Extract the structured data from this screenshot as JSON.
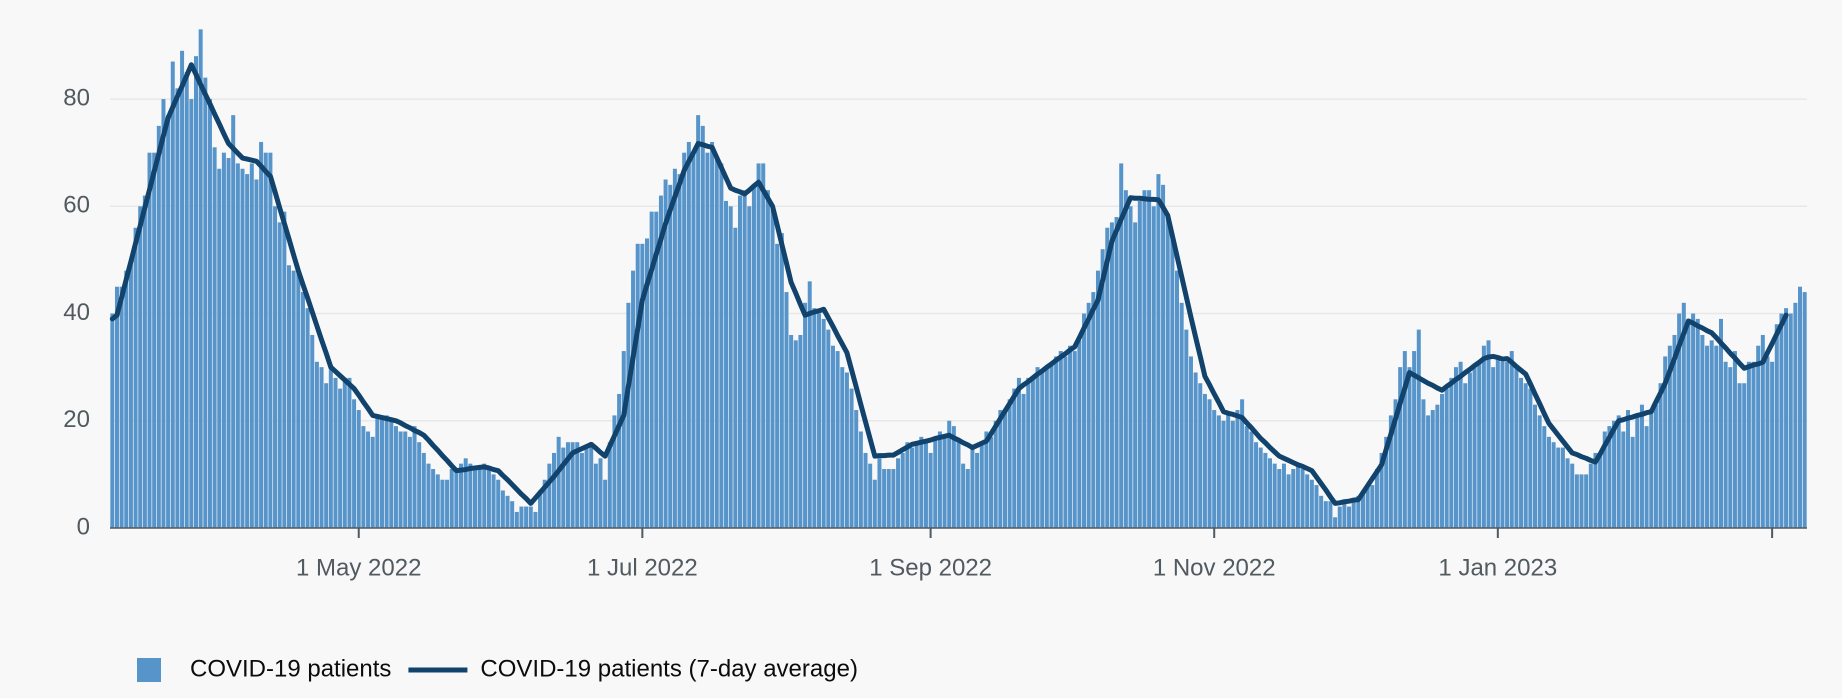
{
  "chart_data": {
    "type": "bar",
    "x": [
      "2022-03-09",
      "2022-03-10",
      "2022-03-11",
      "2022-03-12",
      "2022-03-13",
      "2022-03-14",
      "2022-03-15",
      "2022-03-16",
      "2022-03-17",
      "2022-03-18",
      "2022-03-19",
      "2022-03-20",
      "2022-03-21",
      "2022-03-22",
      "2022-03-23",
      "2022-03-24",
      "2022-03-25",
      "2022-03-26",
      "2022-03-27",
      "2022-03-28",
      "2022-03-29",
      "2022-03-30",
      "2022-03-31",
      "2022-04-01",
      "2022-04-02",
      "2022-04-03",
      "2022-04-04",
      "2022-04-05",
      "2022-04-06",
      "2022-04-07",
      "2022-04-08",
      "2022-04-09",
      "2022-04-10",
      "2022-04-11",
      "2022-04-12",
      "2022-04-13",
      "2022-04-14",
      "2022-04-15",
      "2022-04-16",
      "2022-04-17",
      "2022-04-18",
      "2022-04-19",
      "2022-04-20",
      "2022-04-21",
      "2022-04-22",
      "2022-04-23",
      "2022-04-24",
      "2022-04-25",
      "2022-04-26",
      "2022-04-27",
      "2022-04-28",
      "2022-04-29",
      "2022-04-30",
      "2022-05-01",
      "2022-05-02",
      "2022-05-03",
      "2022-05-04",
      "2022-05-05",
      "2022-05-06",
      "2022-05-07",
      "2022-05-08",
      "2022-05-09",
      "2022-05-10",
      "2022-05-11",
      "2022-05-12",
      "2022-05-13",
      "2022-05-14",
      "2022-05-15",
      "2022-05-16",
      "2022-05-17",
      "2022-05-18",
      "2022-05-19",
      "2022-05-20",
      "2022-05-21",
      "2022-05-22",
      "2022-05-23",
      "2022-05-24",
      "2022-05-25",
      "2022-05-26",
      "2022-05-27",
      "2022-05-28",
      "2022-05-29",
      "2022-05-30",
      "2022-05-31",
      "2022-06-01",
      "2022-06-02",
      "2022-06-03",
      "2022-06-04",
      "2022-06-05",
      "2022-06-06",
      "2022-06-07",
      "2022-06-08",
      "2022-06-09",
      "2022-06-10",
      "2022-06-11",
      "2022-06-12",
      "2022-06-13",
      "2022-06-14",
      "2022-06-15",
      "2022-06-16",
      "2022-06-17",
      "2022-06-18",
      "2022-06-19",
      "2022-06-20",
      "2022-06-21",
      "2022-06-22",
      "2022-06-23",
      "2022-06-24",
      "2022-06-25",
      "2022-06-26",
      "2022-06-27",
      "2022-06-28",
      "2022-06-29",
      "2022-06-30",
      "2022-07-01",
      "2022-07-02",
      "2022-07-03",
      "2022-07-04",
      "2022-07-05",
      "2022-07-06",
      "2022-07-07",
      "2022-07-08",
      "2022-07-09",
      "2022-07-10",
      "2022-07-11",
      "2022-07-12",
      "2022-07-13",
      "2022-07-14",
      "2022-07-15",
      "2022-07-16",
      "2022-07-17",
      "2022-07-18",
      "2022-07-19",
      "2022-07-20",
      "2022-07-21",
      "2022-07-22",
      "2022-07-23",
      "2022-07-24",
      "2022-07-25",
      "2022-07-26",
      "2022-07-27",
      "2022-07-28",
      "2022-07-29",
      "2022-07-30",
      "2022-07-31",
      "2022-08-01",
      "2022-08-02",
      "2022-08-03",
      "2022-08-04",
      "2022-08-05",
      "2022-08-06",
      "2022-08-07",
      "2022-08-08",
      "2022-08-09",
      "2022-08-10",
      "2022-08-11",
      "2022-08-12",
      "2022-08-13",
      "2022-08-14",
      "2022-08-15",
      "2022-08-16",
      "2022-08-17",
      "2022-08-18",
      "2022-08-19",
      "2022-08-20",
      "2022-08-21",
      "2022-08-22",
      "2022-08-23",
      "2022-08-24",
      "2022-08-25",
      "2022-08-26",
      "2022-08-27",
      "2022-08-28",
      "2022-08-29",
      "2022-08-30",
      "2022-08-31",
      "2022-09-01",
      "2022-09-02",
      "2022-09-03",
      "2022-09-04",
      "2022-09-05",
      "2022-09-06",
      "2022-09-07",
      "2022-09-08",
      "2022-09-09",
      "2022-09-10",
      "2022-09-11",
      "2022-09-12",
      "2022-09-13",
      "2022-09-14",
      "2022-09-15",
      "2022-09-16",
      "2022-09-17",
      "2022-09-18",
      "2022-09-19",
      "2022-09-20",
      "2022-09-21",
      "2022-09-22",
      "2022-09-23",
      "2022-09-24",
      "2022-09-25",
      "2022-09-26",
      "2022-09-27",
      "2022-09-28",
      "2022-09-29",
      "2022-09-30",
      "2022-10-01",
      "2022-10-02",
      "2022-10-03",
      "2022-10-04",
      "2022-10-05",
      "2022-10-06",
      "2022-10-07",
      "2022-10-08",
      "2022-10-09",
      "2022-10-10",
      "2022-10-11",
      "2022-10-12",
      "2022-10-13",
      "2022-10-14",
      "2022-10-15",
      "2022-10-16",
      "2022-10-17",
      "2022-10-18",
      "2022-10-19",
      "2022-10-20",
      "2022-10-21",
      "2022-10-22",
      "2022-10-23",
      "2022-10-24",
      "2022-10-25",
      "2022-10-26",
      "2022-10-27",
      "2022-10-28",
      "2022-10-29",
      "2022-10-30",
      "2022-10-31",
      "2022-11-01",
      "2022-11-02",
      "2022-11-03",
      "2022-11-04",
      "2022-11-05",
      "2022-11-06",
      "2022-11-07",
      "2022-11-08",
      "2022-11-09",
      "2022-11-10",
      "2022-11-11",
      "2022-11-12",
      "2022-11-13",
      "2022-11-14",
      "2022-11-15",
      "2022-11-16",
      "2022-11-17",
      "2022-11-18",
      "2022-11-19",
      "2022-11-20",
      "2022-11-21",
      "2022-11-22",
      "2022-11-23",
      "2022-11-24",
      "2022-11-25",
      "2022-11-26",
      "2022-11-27",
      "2022-11-28",
      "2022-11-29",
      "2022-11-30",
      "2022-12-01",
      "2022-12-02",
      "2022-12-03",
      "2022-12-04",
      "2022-12-05",
      "2022-12-06",
      "2022-12-07",
      "2022-12-08",
      "2022-12-09",
      "2022-12-10",
      "2022-12-11",
      "2022-12-12",
      "2022-12-13",
      "2022-12-14",
      "2022-12-15",
      "2022-12-16",
      "2022-12-17",
      "2022-12-18",
      "2022-12-19",
      "2022-12-20",
      "2022-12-21",
      "2022-12-22",
      "2022-12-23",
      "2022-12-24",
      "2022-12-25",
      "2022-12-26",
      "2022-12-27",
      "2022-12-28",
      "2022-12-29",
      "2022-12-30",
      "2022-12-31",
      "2023-01-01",
      "2023-01-02",
      "2023-01-03",
      "2023-01-04",
      "2023-01-05",
      "2023-01-06",
      "2023-01-07",
      "2023-01-08",
      "2023-01-09",
      "2023-01-10",
      "2023-01-11",
      "2023-01-12",
      "2023-01-13",
      "2023-01-14",
      "2023-01-15",
      "2023-01-16",
      "2023-01-17",
      "2023-01-18",
      "2023-01-19",
      "2023-01-20",
      "2023-01-21",
      "2023-01-22",
      "2023-01-23",
      "2023-01-24",
      "2023-01-25",
      "2023-01-26",
      "2023-01-27",
      "2023-01-28",
      "2023-01-29",
      "2023-01-30",
      "2023-01-31",
      "2023-02-01",
      "2023-02-02",
      "2023-02-03",
      "2023-02-04",
      "2023-02-05",
      "2023-02-06",
      "2023-02-07",
      "2023-02-08",
      "2023-02-09",
      "2023-02-10",
      "2023-02-11",
      "2023-02-12",
      "2023-02-13",
      "2023-02-14",
      "2023-02-15",
      "2023-02-16",
      "2023-02-17",
      "2023-02-18",
      "2023-02-19",
      "2023-02-20",
      "2023-02-21",
      "2023-02-22",
      "2023-02-23",
      "2023-02-24",
      "2023-02-25",
      "2023-02-26",
      "2023-02-27",
      "2023-02-28",
      "2023-03-01",
      "2023-03-02",
      "2023-03-03",
      "2023-03-04",
      "2023-03-05",
      "2023-03-06",
      "2023-03-07",
      "2023-03-08"
    ],
    "series": [
      {
        "name": "COVID-19 patients",
        "type": "bar",
        "color": "#5694ca",
        "values": [
          40,
          45,
          45,
          48,
          50,
          56,
          60,
          62,
          70,
          70,
          75,
          80,
          77,
          87,
          82,
          89,
          85,
          80,
          88,
          93,
          84,
          80,
          71,
          67,
          70,
          69,
          77,
          68,
          67,
          66,
          68,
          65,
          72,
          70,
          70,
          60,
          57,
          59,
          49,
          48,
          48,
          44,
          41,
          36,
          31,
          30,
          27,
          30,
          28,
          26,
          28,
          28,
          24,
          22,
          19,
          18,
          17,
          21,
          21,
          21,
          20,
          19,
          18,
          18,
          17,
          19,
          16,
          14,
          12,
          11,
          10,
          9,
          9,
          11,
          11,
          12,
          13,
          12,
          11,
          11,
          12,
          11,
          10,
          9,
          7,
          6,
          5,
          3,
          4,
          4,
          4,
          3,
          7,
          9,
          12,
          14,
          17,
          15,
          16,
          16,
          16,
          14,
          15,
          16,
          12,
          13,
          9,
          16,
          21,
          25,
          33,
          42,
          48,
          53,
          53,
          54,
          59,
          59,
          62,
          65,
          64,
          67,
          66,
          70,
          72,
          70,
          77,
          75,
          70,
          72,
          69,
          68,
          61,
          60,
          56,
          62,
          63,
          60,
          64,
          68,
          68,
          63,
          60,
          53,
          55,
          44,
          36,
          35,
          36,
          42,
          46,
          41,
          40,
          39,
          37,
          34,
          33,
          30,
          29,
          26,
          22,
          18,
          14,
          12,
          9,
          13,
          11,
          11,
          11,
          13,
          14,
          16,
          15,
          16,
          17,
          16,
          14,
          17,
          18,
          17,
          20,
          19,
          16,
          12,
          11,
          15,
          14,
          16,
          18,
          17,
          20,
          22,
          22,
          24,
          26,
          28,
          25,
          28,
          28,
          30,
          29,
          30,
          31,
          32,
          33,
          32,
          34,
          33,
          35,
          40,
          42,
          44,
          48,
          52,
          56,
          57,
          58,
          68,
          63,
          60,
          57,
          61,
          63,
          63,
          60,
          66,
          64,
          58,
          55,
          48,
          42,
          37,
          32,
          29,
          27,
          25,
          24,
          22,
          21,
          20,
          21,
          20,
          22,
          24,
          19,
          18,
          16,
          15,
          14,
          13,
          12,
          11,
          12,
          10,
          11,
          12,
          11,
          10,
          9,
          8,
          6,
          5,
          5,
          2,
          4,
          5,
          4,
          5,
          6,
          7,
          8,
          8,
          11,
          14,
          17,
          21,
          24,
          30,
          33,
          30,
          33,
          37,
          24,
          21,
          22,
          23,
          25,
          26,
          28,
          30,
          31,
          27,
          29,
          30,
          31,
          34,
          35,
          30,
          32,
          31,
          31,
          33,
          30,
          28,
          27,
          26,
          23,
          21,
          19,
          17,
          16,
          15,
          15,
          13,
          12,
          10,
          10,
          10,
          12,
          14,
          14,
          18,
          19,
          20,
          21,
          18,
          22,
          17,
          21,
          23,
          19,
          22,
          23,
          27,
          32,
          34,
          36,
          40,
          42,
          39,
          40,
          39,
          36,
          34,
          35,
          34,
          39,
          31,
          30,
          33,
          27,
          27,
          31,
          31,
          34,
          36,
          32,
          31,
          38,
          40,
          41,
          40,
          42,
          45,
          44
        ]
      },
      {
        "name": "COVID-19 patients (7-day average)",
        "type": "line",
        "color": "#12436d",
        "values": [
          39.0,
          39.7,
          43.0,
          46.4,
          49.7,
          53.1,
          56.4,
          59.8,
          63.1,
          66.5,
          69.8,
          73.2,
          76.5,
          78.5,
          80.5,
          82.4,
          84.4,
          86.4,
          84.6,
          82.7,
          80.9,
          79.1,
          77.2,
          75.4,
          73.5,
          71.7,
          70.8,
          69.9,
          69.0,
          68.8,
          68.6,
          68.4,
          67.5,
          66.5,
          65.6,
          62.7,
          59.7,
          56.8,
          53.9,
          50.9,
          48.0,
          45.4,
          42.9,
          40.3,
          37.7,
          35.1,
          32.6,
          30.0,
          29.2,
          28.4,
          27.6,
          26.8,
          26.0,
          24.8,
          23.5,
          22.3,
          21.0,
          20.8,
          20.6,
          20.4,
          20.2,
          20.0,
          19.6,
          19.1,
          18.7,
          18.2,
          17.8,
          17.3,
          16.4,
          15.4,
          14.5,
          13.5,
          12.6,
          11.6,
          10.7,
          10.8,
          10.9,
          11.1,
          11.2,
          11.3,
          11.4,
          11.2,
          10.9,
          10.7,
          9.8,
          9.0,
          8.1,
          7.2,
          6.3,
          5.5,
          4.6,
          5.6,
          6.6,
          7.6,
          8.6,
          9.6,
          10.7,
          11.8,
          12.9,
          14.0,
          14.4,
          14.8,
          15.2,
          15.6,
          14.9,
          14.1,
          13.4,
          15.3,
          17.2,
          19.1,
          21.0,
          26.4,
          31.8,
          37.1,
          42.5,
          45.4,
          48.2,
          51.1,
          53.9,
          56.8,
          59.3,
          61.8,
          64.2,
          66.7,
          68.4,
          70.0,
          71.7,
          71.5,
          71.2,
          71.0,
          69.1,
          67.2,
          65.3,
          63.4,
          63.0,
          62.7,
          62.3,
          63.0,
          63.8,
          64.5,
          63.0,
          61.5,
          60.0,
          56.5,
          52.9,
          49.4,
          45.8,
          43.8,
          41.7,
          39.7,
          40.0,
          40.3,
          40.5,
          40.8,
          39.2,
          37.6,
          35.9,
          34.3,
          32.7,
          29.5,
          26.3,
          23.0,
          19.8,
          16.6,
          13.4,
          13.5,
          13.5,
          13.6,
          13.6,
          14.1,
          14.6,
          15.1,
          15.6,
          15.8,
          16.0,
          16.2,
          16.4,
          16.7,
          16.9,
          17.1,
          17.3,
          16.8,
          16.4,
          15.9,
          15.5,
          15.0,
          15.4,
          15.8,
          16.2,
          17.6,
          19.0,
          20.4,
          21.8,
          23.2,
          24.6,
          26.0,
          26.7,
          27.3,
          28.0,
          28.7,
          29.3,
          30.0,
          30.6,
          31.3,
          31.9,
          32.5,
          33.2,
          33.8,
          35.5,
          37.3,
          39.0,
          40.8,
          42.5,
          46.2,
          49.8,
          53.5,
          55.5,
          57.6,
          59.6,
          61.6,
          61.5,
          61.5,
          61.4,
          61.3,
          61.3,
          61.2,
          59.8,
          58.3,
          54.5,
          50.7,
          46.9,
          43.1,
          39.3,
          35.6,
          32.0,
          28.3,
          26.7,
          25.0,
          23.4,
          21.7,
          21.4,
          21.2,
          20.9,
          20.6,
          19.6,
          18.7,
          17.7,
          16.7,
          15.9,
          15.0,
          14.2,
          13.4,
          13.0,
          12.6,
          12.2,
          11.8,
          11.5,
          11.1,
          10.7,
          9.5,
          8.3,
          7.1,
          5.8,
          4.6,
          4.7,
          4.9,
          5.0,
          5.2,
          5.3,
          6.6,
          7.9,
          9.2,
          10.5,
          11.8,
          14.7,
          17.5,
          20.4,
          23.3,
          26.1,
          29.0,
          28.5,
          28.0,
          27.5,
          27.0,
          26.6,
          26.1,
          25.7,
          26.4,
          27.0,
          27.7,
          28.3,
          29.0,
          29.6,
          30.3,
          30.9,
          31.6,
          31.9,
          32.0,
          31.8,
          31.5,
          31.6,
          30.9,
          30.1,
          29.4,
          28.7,
          26.9,
          25.0,
          23.2,
          21.3,
          19.5,
          18.4,
          17.3,
          16.2,
          15.1,
          14.0,
          13.7,
          13.3,
          13.0,
          12.6,
          12.3,
          13.8,
          15.4,
          16.9,
          18.5,
          20.0,
          20.2,
          20.5,
          20.7,
          21.0,
          21.2,
          21.5,
          21.7,
          23.5,
          25.2,
          27.0,
          29.3,
          31.6,
          34.0,
          36.3,
          38.6,
          38.2,
          37.7,
          37.3,
          36.8,
          36.4,
          35.5,
          34.5,
          33.6,
          32.6,
          31.7,
          30.7,
          29.8,
          30.1,
          30.4,
          30.6,
          30.9,
          32.7,
          34.4,
          36.2,
          37.9,
          39.7,
          null,
          null,
          null,
          null
        ]
      }
    ],
    "xlim": [
      "2022-03-09",
      "2023-03-08"
    ],
    "xticks": [
      {
        "value": "2022-05-01",
        "label": "1 May 2022"
      },
      {
        "value": "2022-07-01",
        "label": "1 Jul 2022"
      },
      {
        "value": "2022-09-01",
        "label": "1 Sep 2022"
      },
      {
        "value": "2022-11-01",
        "label": "1 Nov 2022"
      },
      {
        "value": "2023-01-01",
        "label": "1 Jan 2023"
      },
      {
        "value": "2023-03-01"
      }
    ],
    "ylim": [
      0,
      94
    ],
    "yticks": [
      0,
      20,
      40,
      60,
      80
    ],
    "grid": true,
    "legend": "bottom-left"
  }
}
